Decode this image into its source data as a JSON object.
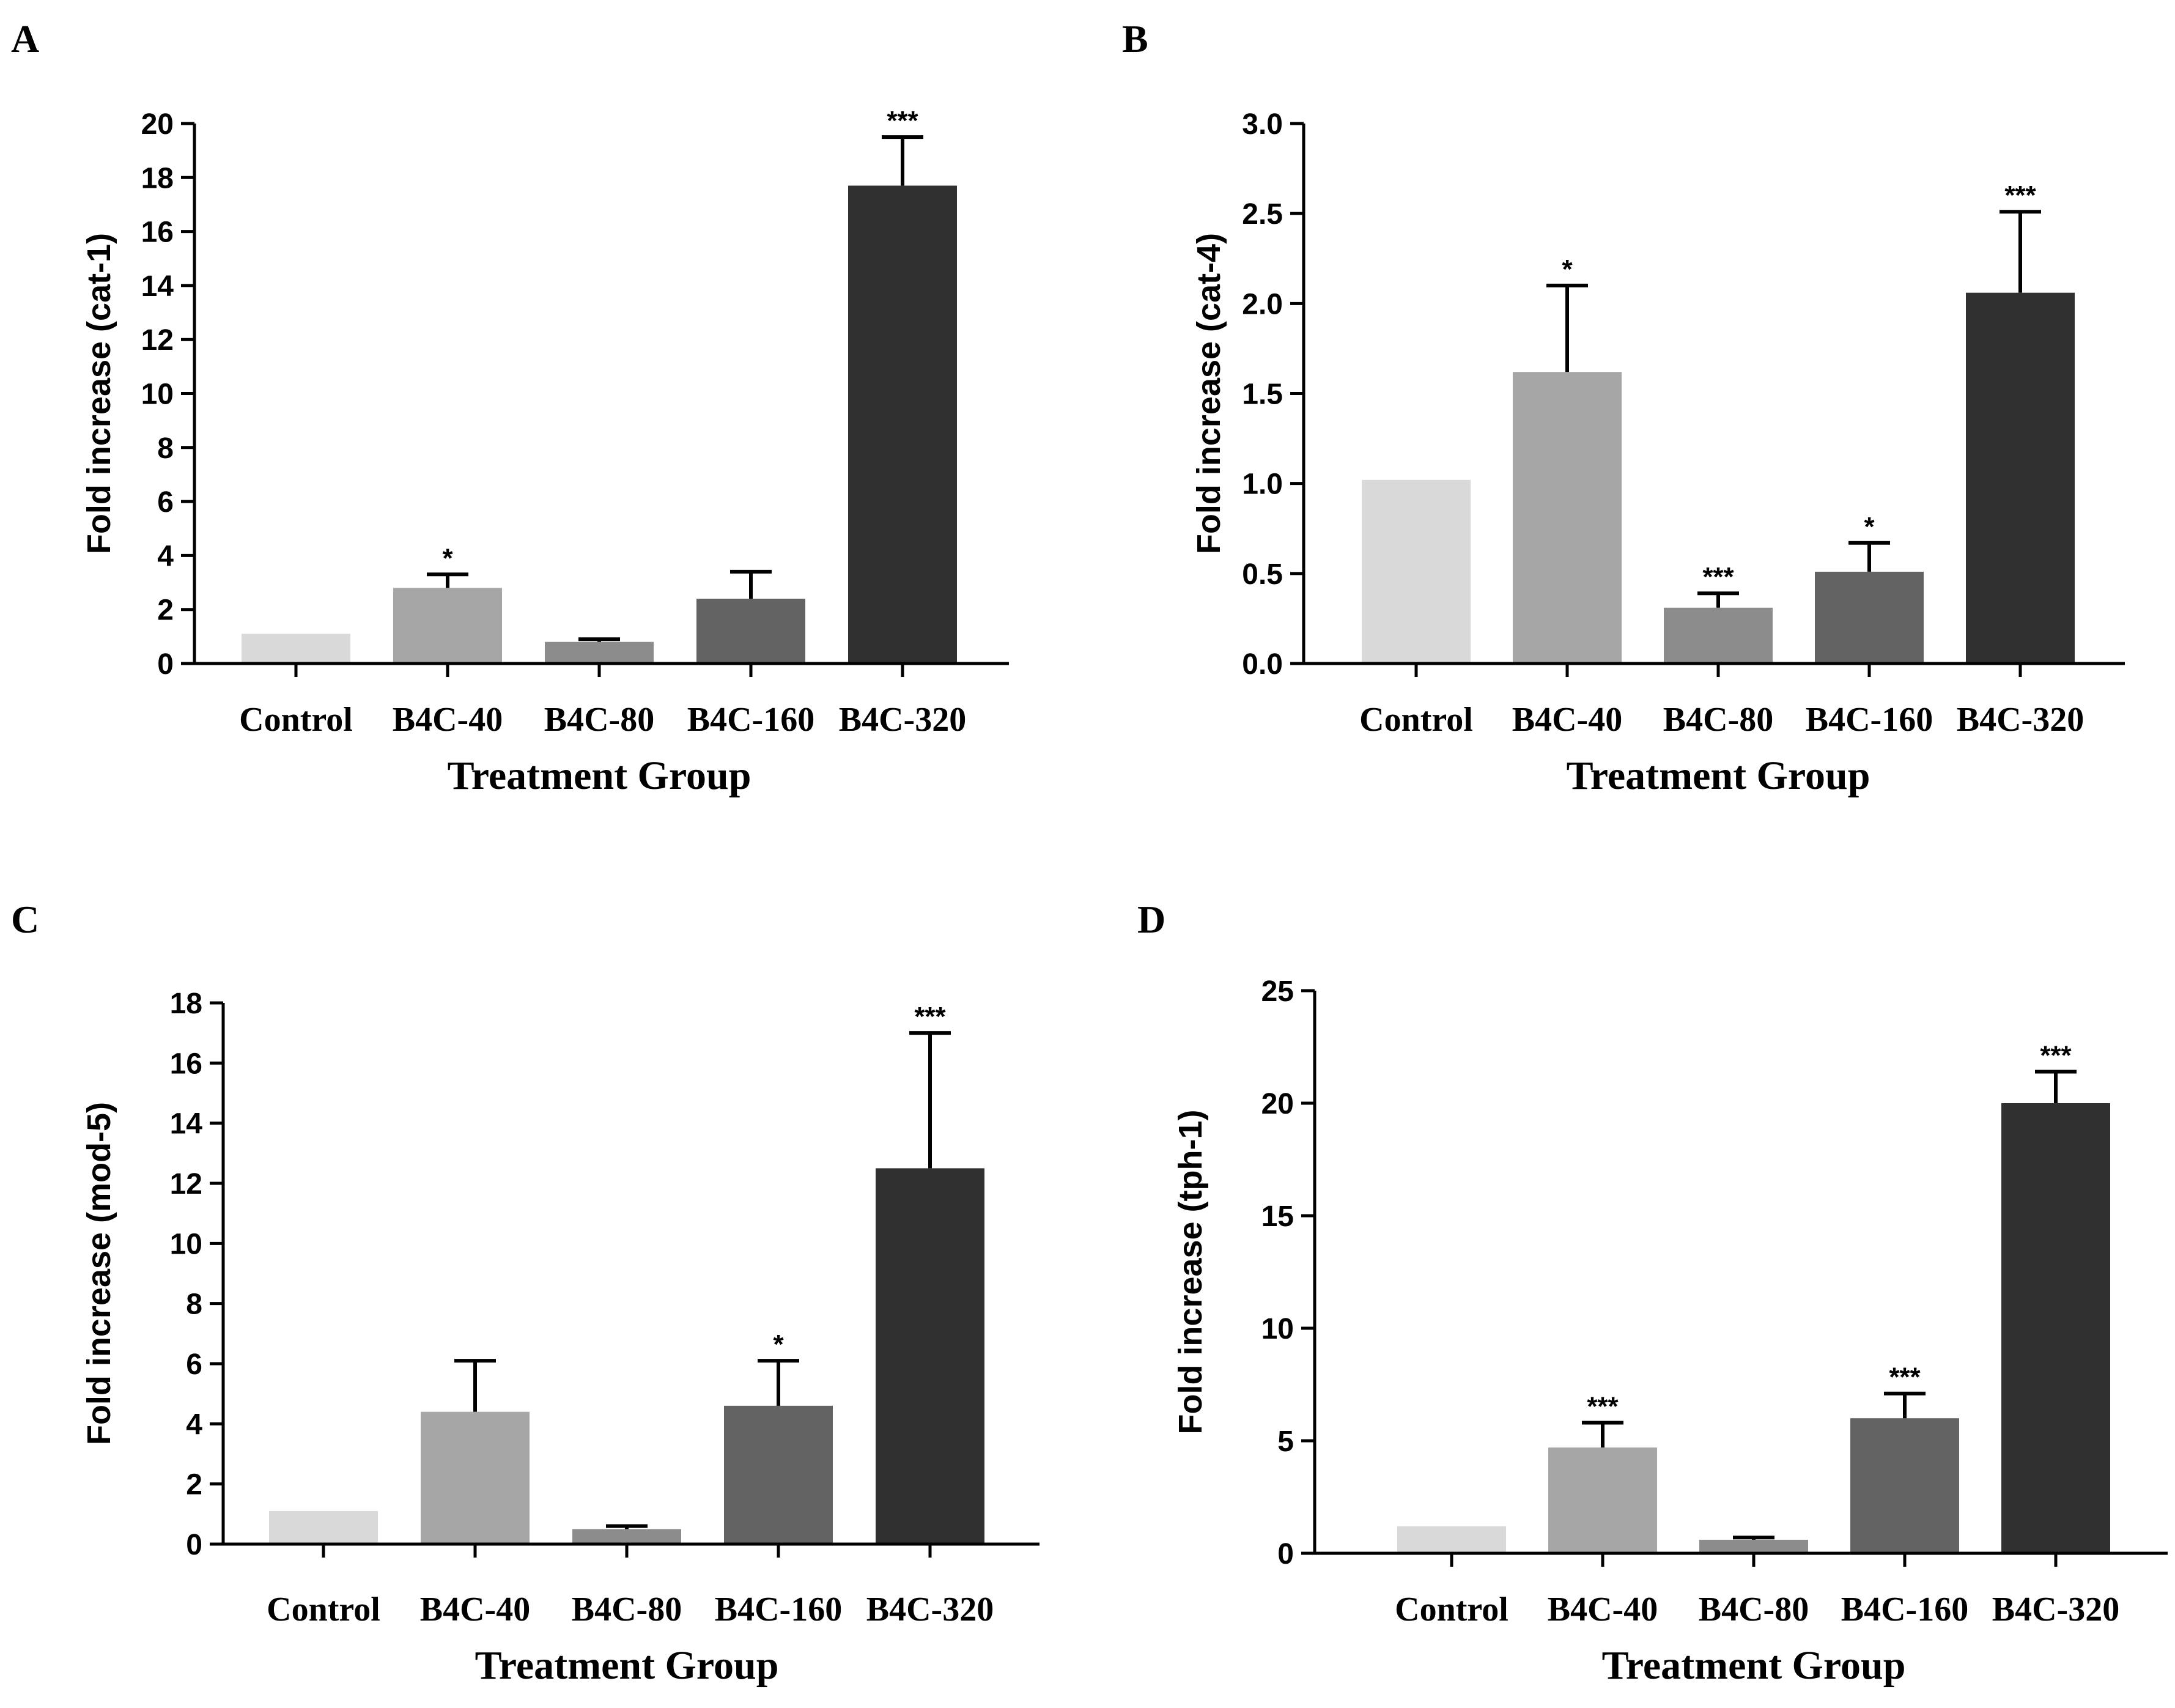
{
  "chart_data": [
    {
      "panel": "A",
      "type": "bar",
      "categories": [
        "Control",
        "B4C-40",
        "B4C-80",
        "B4C-160",
        "B4C-320"
      ],
      "values": [
        1.1,
        2.8,
        0.8,
        2.4,
        17.7
      ],
      "errors": [
        0,
        0.5,
        0.1,
        1.0,
        1.8
      ],
      "significance": [
        "",
        "*",
        "",
        "",
        "***"
      ],
      "colors": [
        "#d9d9d9",
        "#a6a6a6",
        "#8c8c8c",
        "#636363",
        "#303030"
      ],
      "xlabel": "Treatment Group",
      "ylabel": "Fold increase (cat-1)",
      "ylim": [
        0,
        20
      ],
      "yticks": [
        "0",
        "2",
        "4",
        "6",
        "8",
        "10",
        "12",
        "14",
        "16",
        "18",
        "20"
      ]
    },
    {
      "panel": "B",
      "type": "bar",
      "categories": [
        "Control",
        "B4C-40",
        "B4C-80",
        "B4C-160",
        "B4C-320"
      ],
      "values": [
        1.02,
        1.62,
        0.31,
        0.51,
        2.06
      ],
      "errors": [
        0,
        0.48,
        0.08,
        0.16,
        0.45
      ],
      "significance": [
        "",
        "*",
        "***",
        "*",
        "***"
      ],
      "colors": [
        "#d9d9d9",
        "#a6a6a6",
        "#8c8c8c",
        "#636363",
        "#303030"
      ],
      "xlabel": "Treatment Group",
      "ylabel": "Fold increase (cat-4)",
      "ylim": [
        0,
        3.0
      ],
      "yticks": [
        "0.0",
        "0.5",
        "1.0",
        "1.5",
        "2.0",
        "2.5",
        "3.0"
      ]
    },
    {
      "panel": "C",
      "type": "bar",
      "categories": [
        "Control",
        "B4C-40",
        "B4C-80",
        "B4C-160",
        "B4C-320"
      ],
      "values": [
        1.1,
        4.4,
        0.5,
        4.6,
        12.5
      ],
      "errors": [
        0,
        1.7,
        0.1,
        1.5,
        4.5
      ],
      "significance": [
        "",
        "",
        "",
        "*",
        "***"
      ],
      "colors": [
        "#d9d9d9",
        "#a6a6a6",
        "#8c8c8c",
        "#636363",
        "#303030"
      ],
      "xlabel": "Treatment Group",
      "ylabel": "Fold increase (mod-5)",
      "ylim": [
        0,
        18
      ],
      "yticks": [
        "0",
        "2",
        "4",
        "6",
        "8",
        "10",
        "12",
        "14",
        "16",
        "18"
      ]
    },
    {
      "panel": "D",
      "type": "bar",
      "categories": [
        "Control",
        "B4C-40",
        "B4C-80",
        "B4C-160",
        "B4C-320"
      ],
      "values": [
        1.2,
        4.7,
        0.6,
        6.0,
        20.0
      ],
      "errors": [
        0,
        1.1,
        0.1,
        1.1,
        1.4
      ],
      "significance": [
        "",
        "***",
        "",
        "***",
        "***"
      ],
      "colors": [
        "#d9d9d9",
        "#a6a6a6",
        "#8c8c8c",
        "#636363",
        "#303030"
      ],
      "xlabel": "Treatment Group",
      "ylabel": "Fold increase (tph-1)",
      "ylim": [
        0,
        25
      ],
      "yticks": [
        "0",
        "5",
        "10",
        "15",
        "20",
        "25"
      ]
    }
  ]
}
